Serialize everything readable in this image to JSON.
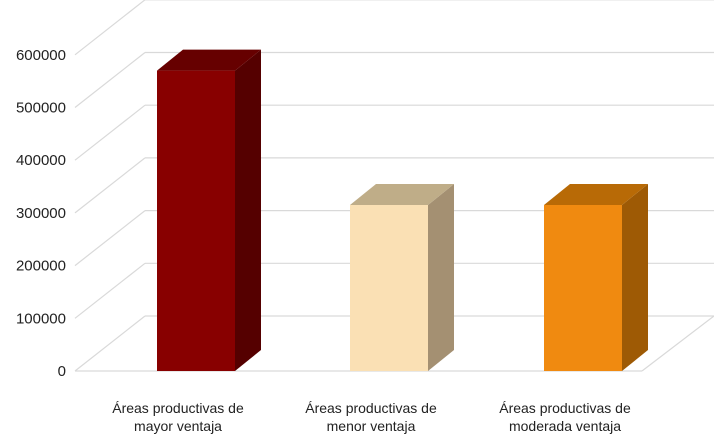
{
  "chart_data": {
    "type": "bar",
    "categories": [
      [
        "Áreas productivas de",
        "mayor ventaja"
      ],
      [
        "Áreas productivas de",
        "menor ventaja"
      ],
      [
        "Áreas productivas de",
        "moderada ventaja"
      ]
    ],
    "values": [
      570000,
      315000,
      315000
    ],
    "y_ticks": [
      "0",
      "100000",
      "200000",
      "300000",
      "400000",
      "500000",
      "600000"
    ],
    "ylim": [
      0,
      600000
    ],
    "grid": true,
    "three_d": true,
    "colors": [
      {
        "front": "#880000",
        "side": "#550000",
        "top": "#660000"
      },
      {
        "front": "#FAE0B4",
        "side": "#A49072",
        "top": "#BFAD88"
      },
      {
        "front": "#F08A10",
        "side": "#9E5A05",
        "top": "#B86A06"
      }
    ],
    "grid_color": "#d9d9d9"
  }
}
